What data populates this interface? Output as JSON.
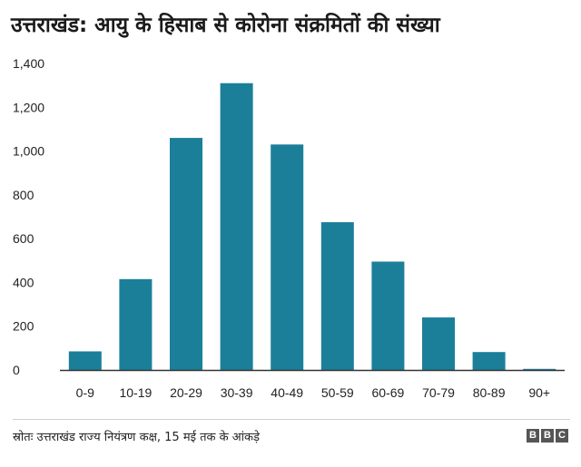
{
  "title": "उत्तराखंड: आयु के हिसाब से कोरोना संक्रमितों की संख्या",
  "chart_data": {
    "type": "bar",
    "title": "उत्तराखंड: आयु के हिसाब से कोरोना संक्रमितों की संख्या",
    "xlabel": "",
    "ylabel": "",
    "categories": [
      "0-9",
      "10-19",
      "20-29",
      "30-39",
      "40-49",
      "50-59",
      "60-69",
      "70-79",
      "80-89",
      "90+"
    ],
    "values": [
      85,
      415,
      1060,
      1310,
      1030,
      675,
      495,
      240,
      82,
      5
    ],
    "ylim": [
      0,
      1400
    ],
    "yticks": [
      0,
      200,
      400,
      600,
      800,
      1000,
      1200,
      1400
    ],
    "ytick_labels": [
      "0",
      "200",
      "400",
      "600",
      "800",
      "1,000",
      "1,200",
      "1,400"
    ],
    "grid": false,
    "bar_color": "#1c7f99"
  },
  "footer": {
    "source": "स्रोतः उत्तराखंड राज्य नियंत्रण कक्ष, 15 मई तक के आंकड़े",
    "logo_letters": [
      "B",
      "B",
      "C"
    ]
  }
}
